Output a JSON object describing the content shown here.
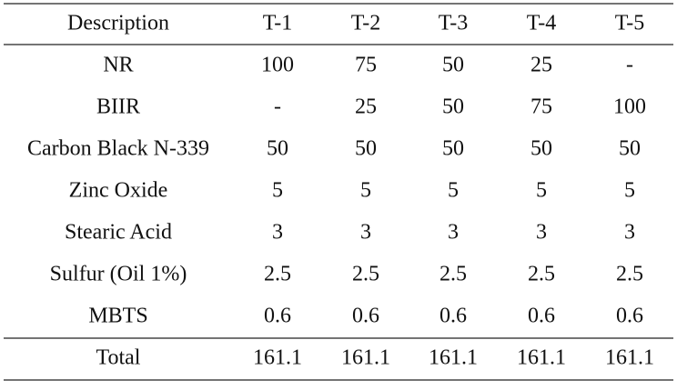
{
  "table": {
    "header": [
      "Description",
      "T-1",
      "T-2",
      "T-3",
      "T-4",
      "T-5"
    ],
    "rows": [
      [
        "NR",
        "100",
        "75",
        "50",
        "25",
        "-"
      ],
      [
        "BIIR",
        "-",
        "25",
        "50",
        "75",
        "100"
      ],
      [
        "Carbon Black N-339",
        "50",
        "50",
        "50",
        "50",
        "50"
      ],
      [
        "Zinc Oxide",
        "5",
        "5",
        "5",
        "5",
        "5"
      ],
      [
        "Stearic Acid",
        "3",
        "3",
        "3",
        "3",
        "3"
      ],
      [
        "Sulfur (Oil 1%)",
        "2.5",
        "2.5",
        "2.5",
        "2.5",
        "2.5"
      ],
      [
        "MBTS",
        "0.6",
        "0.6",
        "0.6",
        "0.6",
        "0.6"
      ]
    ],
    "total": [
      "Total",
      "161.1",
      "161.1",
      "161.1",
      "161.1",
      "161.1"
    ]
  }
}
